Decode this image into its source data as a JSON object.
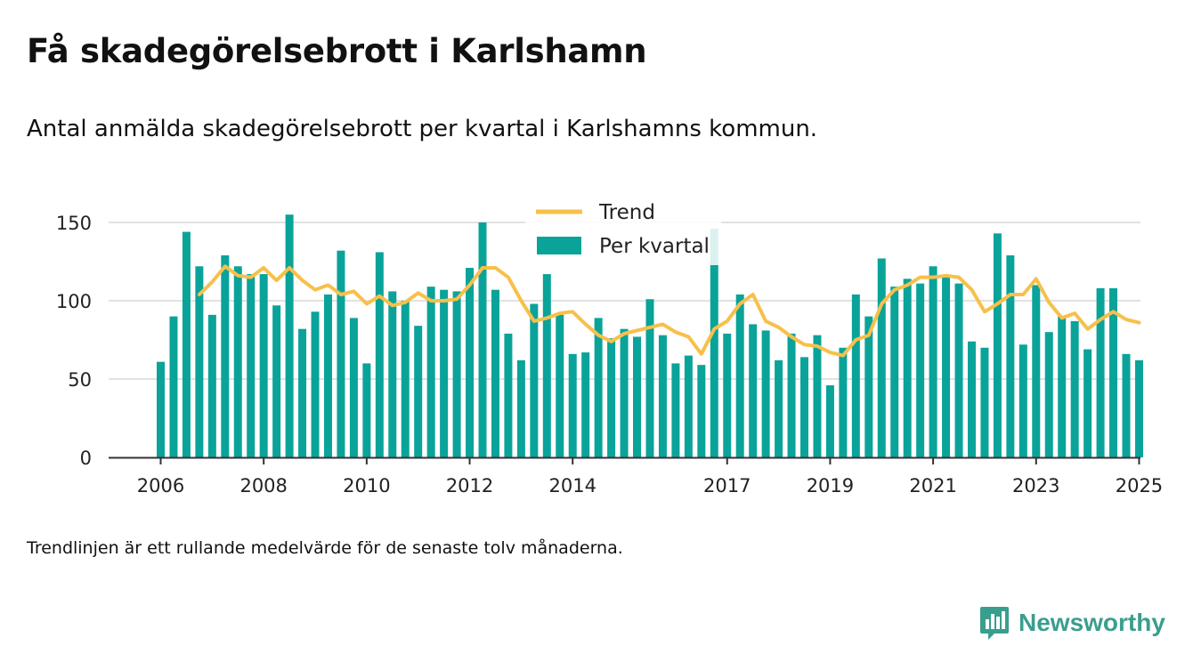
{
  "title": "Få skadegörelsebrott i Karlshamn",
  "subtitle": "Antal anmälda skadegörelsebrott per kvartal i Karlshamns kommun.",
  "note": "Trendlinjen är ett rullande medelvärde för de senaste tolv månaderna.",
  "brand": {
    "name": "Newsworthy",
    "icon": "newsworthy-logo-icon",
    "color": "#3a9e8e"
  },
  "colors": {
    "bars": "#0aa39a",
    "trend": "#f7c04a",
    "grid": "#d9d9d9",
    "axis": "#333333"
  },
  "chart_data": {
    "type": "bar",
    "x_start": "2006 Q1",
    "frequency": "quarter",
    "xticks": [
      "2006",
      "2008",
      "2010",
      "2012",
      "2014",
      "2017",
      "2019",
      "2021",
      "2023",
      "2025"
    ],
    "yticks": [
      0,
      50,
      100,
      150
    ],
    "ylim": [
      0,
      160
    ],
    "grid": true,
    "legend_position": "top-center",
    "series": [
      {
        "name": "Per kvartal",
        "type": "bar",
        "values": [
          61,
          90,
          144,
          122,
          91,
          129,
          122,
          117,
          117,
          97,
          155,
          82,
          93,
          104,
          132,
          89,
          60,
          131,
          106,
          100,
          84,
          109,
          107,
          106,
          121,
          150,
          107,
          79,
          62,
          98,
          117,
          91,
          66,
          67,
          89,
          76,
          82,
          77,
          101,
          78,
          60,
          65,
          59,
          146,
          79,
          104,
          85,
          81,
          62,
          79,
          64,
          78,
          46,
          70,
          104,
          90,
          127,
          109,
          114,
          111,
          122,
          115,
          111,
          74,
          70,
          143,
          129,
          72,
          110,
          80,
          90,
          87,
          69,
          108,
          108,
          66,
          62
        ]
      },
      {
        "name": "Trend",
        "type": "line",
        "values": [
          null,
          null,
          null,
          104,
          112,
          122,
          116,
          115,
          121,
          113,
          121,
          113,
          107,
          110,
          104,
          106,
          98,
          103,
          97,
          99,
          105,
          100,
          100,
          101,
          110,
          121,
          121,
          115,
          100,
          87,
          89,
          92,
          93,
          85,
          78,
          74,
          79,
          81,
          83,
          85,
          80,
          77,
          66,
          82,
          87,
          98,
          104,
          87,
          83,
          77,
          72,
          71,
          67,
          65,
          75,
          78,
          98,
          107,
          110,
          115,
          115,
          116,
          115,
          107,
          93,
          98,
          104,
          104,
          114,
          99,
          89,
          92,
          82,
          88,
          93,
          88,
          86
        ]
      }
    ]
  }
}
